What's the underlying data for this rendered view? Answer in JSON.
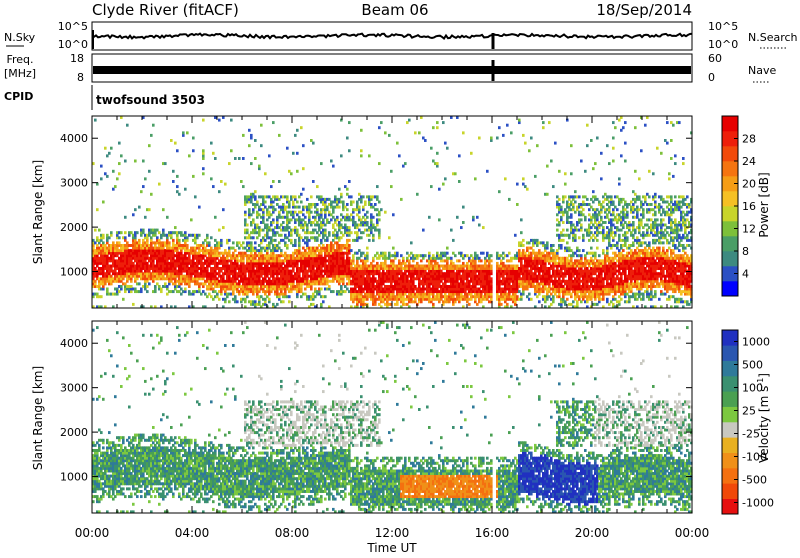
{
  "header": {
    "station": "Clyde River (fitACF)",
    "beam": "Beam 06",
    "date": "18/Sep/2014"
  },
  "info_strips": {
    "nsky": {
      "label": "N.Sky",
      "ticks": [
        "10^5",
        "10^0"
      ]
    },
    "nsearch": {
      "label": "N.Search",
      "ticks": [
        "10^5",
        "10^0"
      ]
    },
    "freq": {
      "label_line1": "Freq.",
      "label_line2": "[MHz]",
      "ticks": [
        "18",
        "8"
      ]
    },
    "nave": {
      "label": "Nave",
      "ticks": [
        "60",
        "0"
      ]
    },
    "cpid": {
      "label": "CPID",
      "value": "twofsound 3503"
    }
  },
  "chart_data": [
    {
      "type": "heatmap",
      "panel": "power",
      "ylabel": "Slant Range [km]",
      "yticks": [
        1000,
        2000,
        3000,
        4000
      ],
      "ylim": [
        180,
        4500
      ],
      "xlim": [
        "00:00",
        "24:00"
      ],
      "colorbar": {
        "label": "Power [dB]",
        "tick_labels": [
          "4",
          "8",
          "12",
          "16",
          "20",
          "24",
          "28"
        ],
        "range": [
          0,
          32
        ],
        "colors": [
          "#0000ff",
          "#2b50c4",
          "#3d8a80",
          "#4a9e66",
          "#7dc03a",
          "#c8d42a",
          "#f5c024",
          "#f59d16",
          "#f57410",
          "#f24a0a",
          "#ee1f0a",
          "#e60000"
        ]
      }
    },
    {
      "type": "heatmap",
      "panel": "velocity",
      "ylabel": "Slant Range [km]",
      "yticks": [
        1000,
        2000,
        3000,
        4000
      ],
      "ylim": [
        180,
        4500
      ],
      "xlim": [
        "00:00",
        "24:00"
      ],
      "xticks": [
        "00:00",
        "04:00",
        "08:00",
        "12:00",
        "16:00",
        "20:00",
        "00:00"
      ],
      "xlabel": "Time UT",
      "colorbar": {
        "label_main": "Velocity",
        "label_unit": "[m s",
        "label_exp": "-1",
        "label_close": "]",
        "tick_labels": [
          "1000",
          "500",
          "100",
          "25",
          "-25",
          "-100",
          "-500",
          "-1000"
        ],
        "colors": [
          "#2030c0",
          "#2a56b0",
          "#2f7a9a",
          "#3a9070",
          "#4aa052",
          "#7cc840",
          "#c8c8c0",
          "#e8b020",
          "#f09018",
          "#f47010",
          "#f04808",
          "#e61010"
        ]
      }
    }
  ]
}
